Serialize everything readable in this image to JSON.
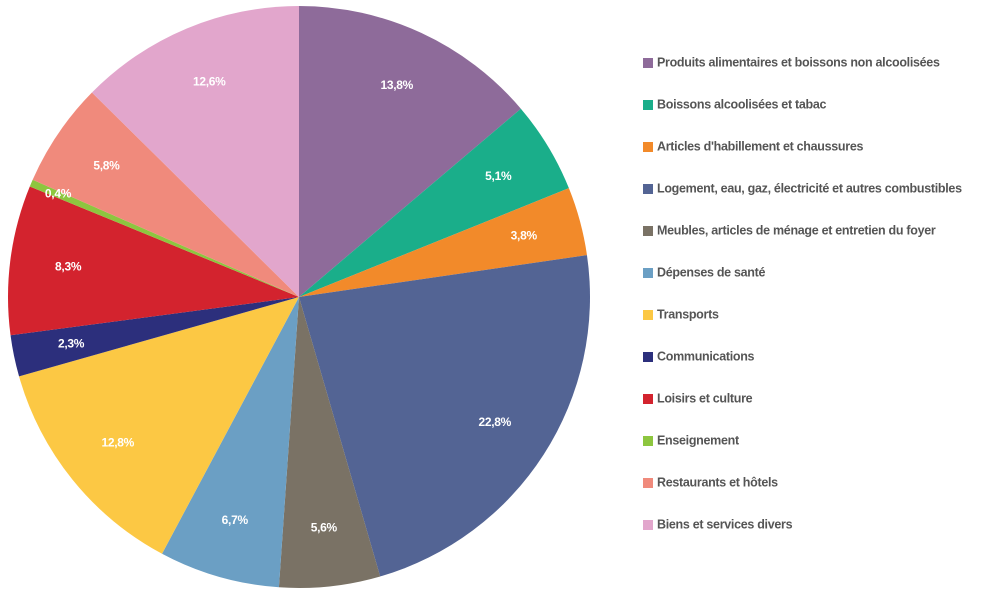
{
  "chart_data": {
    "type": "pie",
    "categories": [
      "Produits alimentaires et boissons non alcoolisées",
      "Boissons alcoolisées et tabac",
      "Articles d'habillement et chaussures",
      "Logement, eau, gaz, électricité et autres combustibles",
      "Meubles, articles de ménage et entretien du foyer",
      "Dépenses de santé",
      "Transports",
      "Communications",
      "Loisirs et culture",
      "Enseignement",
      "Restaurants et hôtels",
      "Biens et services divers"
    ],
    "values": [
      13.8,
      5.1,
      3.8,
      22.8,
      5.6,
      6.7,
      12.8,
      2.3,
      8.3,
      0.4,
      5.8,
      12.6
    ],
    "value_labels": [
      "13,8%",
      "5,1%",
      "3,8%",
      "22,8%",
      "5,6%",
      "6,7%",
      "12,8%",
      "2,3%",
      "8,3%",
      "0,4%",
      "5,8%",
      "12,6%"
    ],
    "colors": [
      "#8e6b9a",
      "#1aae8a",
      "#f28a2a",
      "#536494",
      "#7a7265",
      "#6b9fc4",
      "#fcc844",
      "#2c2f7c",
      "#d3232e",
      "#8dc63f",
      "#f08a7c",
      "#e2a6cc"
    ],
    "legend": "right"
  }
}
